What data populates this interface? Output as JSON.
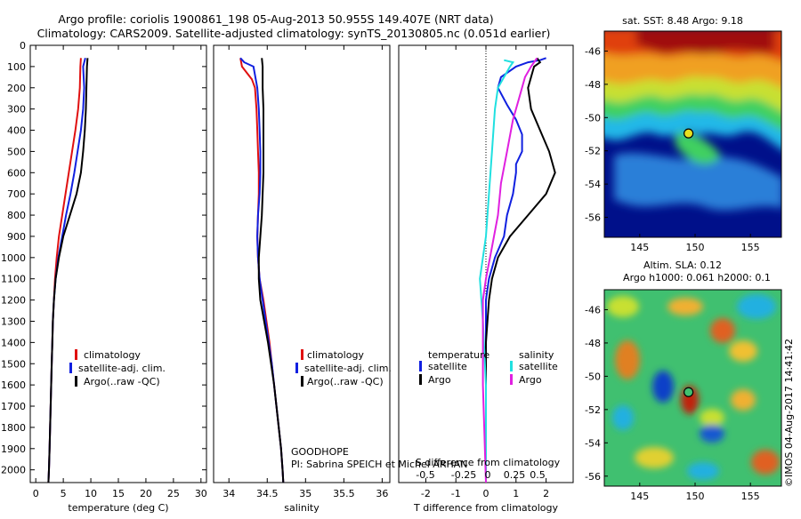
{
  "header": {
    "line1": "Argo profile: coriolis 1900861_198 05-Aug-2013 50.955S 149.407E (NRT data)",
    "line2": "Climatology: CARS2009. Satellite-adjusted climatology: synTS_20130805.nc (0.051d earlier)"
  },
  "colors": {
    "climatology": "#e01010",
    "satellite": "#1020e0",
    "argo": "#000000",
    "salinity_satellite": "#20e0e0",
    "salinity_argo": "#e020e0"
  },
  "chart_data": [
    {
      "type": "line",
      "name": "temperature-profile",
      "xlabel": "temperature (deg C)",
      "xlim": [
        -1,
        31
      ],
      "xticks": [
        0,
        5,
        10,
        15,
        20,
        25,
        30
      ],
      "ylim": [
        2060,
        0
      ],
      "yticks": [
        0,
        100,
        200,
        300,
        400,
        500,
        600,
        700,
        800,
        900,
        1000,
        1100,
        1200,
        1300,
        1400,
        1500,
        1600,
        1700,
        1800,
        1900,
        2000
      ],
      "legend": [
        "climatology",
        "satellite-adj. clim.",
        "Argo(..raw -QC)"
      ],
      "legend_position": "center",
      "series": [
        {
          "name": "climatology",
          "color": "#e01010",
          "points": [
            [
              8.2,
              60
            ],
            [
              8.1,
              100
            ],
            [
              8.0,
              200
            ],
            [
              7.7,
              300
            ],
            [
              7.2,
              400
            ],
            [
              6.6,
              500
            ],
            [
              6.0,
              600
            ],
            [
              5.4,
              700
            ],
            [
              4.8,
              800
            ],
            [
              4.2,
              900
            ],
            [
              3.8,
              1000
            ],
            [
              3.5,
              1100
            ],
            [
              3.3,
              1200
            ],
            [
              3.1,
              1300
            ],
            [
              3.0,
              1400
            ],
            [
              2.9,
              1500
            ],
            [
              2.8,
              1600
            ],
            [
              2.7,
              1700
            ],
            [
              2.6,
              1800
            ],
            [
              2.5,
              1900
            ],
            [
              2.4,
              2000
            ],
            [
              2.3,
              2060
            ]
          ]
        },
        {
          "name": "satellite-adj. clim.",
          "color": "#1020e0",
          "points": [
            [
              9.0,
              60
            ],
            [
              8.6,
              100
            ],
            [
              8.8,
              200
            ],
            [
              8.6,
              300
            ],
            [
              8.2,
              400
            ],
            [
              7.6,
              500
            ],
            [
              7.0,
              600
            ],
            [
              6.3,
              700
            ],
            [
              5.5,
              800
            ],
            [
              4.8,
              900
            ],
            [
              4.1,
              1000
            ],
            [
              3.6,
              1100
            ],
            [
              3.3,
              1200
            ],
            [
              3.1,
              1300
            ],
            [
              3.0,
              1400
            ],
            [
              2.9,
              1500
            ],
            [
              2.8,
              1600
            ],
            [
              2.7,
              1700
            ],
            [
              2.6,
              1800
            ],
            [
              2.5,
              1900
            ],
            [
              2.4,
              2000
            ],
            [
              2.3,
              2060
            ]
          ]
        },
        {
          "name": "Argo(..raw -QC)",
          "color": "#000000",
          "points": [
            [
              9.4,
              60
            ],
            [
              9.3,
              100
            ],
            [
              9.2,
              200
            ],
            [
              9.1,
              300
            ],
            [
              8.9,
              400
            ],
            [
              8.6,
              500
            ],
            [
              8.2,
              600
            ],
            [
              7.4,
              700
            ],
            [
              6.2,
              800
            ],
            [
              5.0,
              900
            ],
            [
              4.2,
              1000
            ],
            [
              3.6,
              1100
            ],
            [
              3.3,
              1200
            ],
            [
              3.1,
              1300
            ],
            [
              3.0,
              1400
            ],
            [
              2.9,
              1500
            ],
            [
              2.8,
              1600
            ],
            [
              2.7,
              1700
            ],
            [
              2.6,
              1800
            ],
            [
              2.5,
              1900
            ],
            [
              2.4,
              2000
            ],
            [
              2.3,
              2060
            ]
          ]
        }
      ]
    },
    {
      "type": "line",
      "name": "salinity-profile",
      "xlabel": "salinity",
      "xlim": [
        33.8,
        36.1
      ],
      "xticks": [
        34,
        34.5,
        35,
        35.5,
        36
      ],
      "ylim": [
        2060,
        0
      ],
      "legend": [
        "climatology",
        "satellite-adj. clim.",
        "Argo(..raw -QC)"
      ],
      "legend_position": "center",
      "annotations": [
        "GOODHOPE",
        "PI: Sabrina SPEICH et Michel ARHAN"
      ],
      "series": [
        {
          "name": "climatology",
          "color": "#e01010",
          "points": [
            [
              34.15,
              60
            ],
            [
              34.17,
              100
            ],
            [
              34.3,
              160
            ],
            [
              34.34,
              200
            ],
            [
              34.36,
              300
            ],
            [
              34.37,
              400
            ],
            [
              34.38,
              500
            ],
            [
              34.39,
              600
            ],
            [
              34.39,
              700
            ],
            [
              34.38,
              800
            ],
            [
              34.37,
              900
            ],
            [
              34.38,
              1000
            ],
            [
              34.4,
              1100
            ],
            [
              34.45,
              1200
            ],
            [
              34.49,
              1300
            ],
            [
              34.53,
              1400
            ],
            [
              34.56,
              1500
            ],
            [
              34.59,
              1600
            ],
            [
              34.62,
              1700
            ],
            [
              34.65,
              1800
            ],
            [
              34.68,
              1900
            ],
            [
              34.7,
              2000
            ],
            [
              34.71,
              2060
            ]
          ]
        },
        {
          "name": "satellite-adj. clim.",
          "color": "#1020e0",
          "points": [
            [
              34.15,
              60
            ],
            [
              34.2,
              80
            ],
            [
              34.32,
              100
            ],
            [
              34.37,
              200
            ],
            [
              34.39,
              300
            ],
            [
              34.4,
              400
            ],
            [
              34.41,
              500
            ],
            [
              34.41,
              600
            ],
            [
              34.4,
              700
            ],
            [
              34.38,
              800
            ],
            [
              34.37,
              900
            ],
            [
              34.38,
              1000
            ],
            [
              34.4,
              1100
            ],
            [
              34.44,
              1200
            ],
            [
              34.48,
              1300
            ],
            [
              34.52,
              1400
            ],
            [
              34.56,
              1500
            ],
            [
              34.59,
              1600
            ],
            [
              34.62,
              1700
            ],
            [
              34.65,
              1800
            ],
            [
              34.68,
              1900
            ],
            [
              34.7,
              2000
            ],
            [
              34.71,
              2060
            ]
          ]
        },
        {
          "name": "Argo(..raw -QC)",
          "color": "#000000",
          "points": [
            [
              34.43,
              60
            ],
            [
              34.44,
              100
            ],
            [
              34.44,
              200
            ],
            [
              34.45,
              300
            ],
            [
              34.45,
              400
            ],
            [
              34.45,
              500
            ],
            [
              34.45,
              600
            ],
            [
              34.44,
              700
            ],
            [
              34.43,
              800
            ],
            [
              34.41,
              900
            ],
            [
              34.39,
              1000
            ],
            [
              34.39,
              1100
            ],
            [
              34.41,
              1200
            ],
            [
              34.46,
              1300
            ],
            [
              34.51,
              1400
            ],
            [
              34.55,
              1500
            ],
            [
              34.59,
              1600
            ],
            [
              34.62,
              1700
            ],
            [
              34.65,
              1800
            ],
            [
              34.68,
              1900
            ],
            [
              34.7,
              2000
            ],
            [
              34.71,
              2060
            ]
          ]
        }
      ]
    },
    {
      "type": "line",
      "name": "difference-profile",
      "xlabel": "T difference from climatology",
      "xlabel_top": "S difference from climatology",
      "xlim": [
        -2.9,
        2.9
      ],
      "xticks": [
        -2,
        -1,
        0,
        1,
        2
      ],
      "secondary_xticks_labels": [
        "-0.5",
        "-0.25",
        "0",
        "0.25",
        "0.5"
      ],
      "ylim": [
        2060,
        0
      ],
      "legend": [
        "temperature",
        "satellite",
        "Argo",
        "salinity",
        "satellite",
        "Argo"
      ],
      "legend_position": "center",
      "series": [
        {
          "name": "T satellite",
          "color": "#1020e0",
          "points": [
            [
              2.0,
              60
            ],
            [
              1.8,
              70
            ],
            [
              1.4,
              80
            ],
            [
              1.0,
              100
            ],
            [
              0.5,
              150
            ],
            [
              0.4,
              200
            ],
            [
              0.7,
              280
            ],
            [
              1.0,
              350
            ],
            [
              1.2,
              420
            ],
            [
              1.2,
              500
            ],
            [
              1.0,
              560
            ],
            [
              1.0,
              600
            ],
            [
              0.9,
              700
            ],
            [
              0.7,
              800
            ],
            [
              0.6,
              900
            ],
            [
              0.3,
              1000
            ],
            [
              0.1,
              1100
            ],
            [
              0.0,
              1200
            ],
            [
              0.0,
              1400
            ],
            [
              0.0,
              2060
            ]
          ]
        },
        {
          "name": "T Argo",
          "color": "#000000",
          "points": [
            [
              1.7,
              60
            ],
            [
              1.8,
              80
            ],
            [
              1.6,
              100
            ],
            [
              1.5,
              150
            ],
            [
              1.4,
              200
            ],
            [
              1.5,
              300
            ],
            [
              1.8,
              400
            ],
            [
              2.1,
              500
            ],
            [
              2.3,
              600
            ],
            [
              2.0,
              700
            ],
            [
              1.4,
              800
            ],
            [
              0.8,
              900
            ],
            [
              0.4,
              1000
            ],
            [
              0.2,
              1100
            ],
            [
              0.1,
              1200
            ],
            [
              0.0,
              1400
            ],
            [
              0.0,
              2060
            ]
          ]
        },
        {
          "name": "S satellite",
          "color": "#20e0e0",
          "points": [
            [
              0.6,
              70
            ],
            [
              0.9,
              80
            ],
            [
              0.8,
              100
            ],
            [
              0.6,
              150
            ],
            [
              0.4,
              200
            ],
            [
              0.3,
              300
            ],
            [
              0.2,
              500
            ],
            [
              0.1,
              700
            ],
            [
              0.0,
              900
            ],
            [
              -0.2,
              1100
            ],
            [
              -0.1,
              1300
            ],
            [
              0.0,
              1600
            ],
            [
              0.0,
              2060
            ]
          ]
        },
        {
          "name": "S Argo",
          "color": "#e020e0",
          "points": [
            [
              1.7,
              60
            ],
            [
              1.5,
              100
            ],
            [
              1.3,
              150
            ],
            [
              1.1,
              250
            ],
            [
              0.9,
              350
            ],
            [
              0.7,
              500
            ],
            [
              0.5,
              650
            ],
            [
              0.4,
              800
            ],
            [
              0.2,
              950
            ],
            [
              0.0,
              1100
            ],
            [
              -0.1,
              1200
            ],
            [
              -0.1,
              1600
            ],
            [
              0.0,
              2060
            ]
          ]
        }
      ]
    },
    {
      "type": "heatmap",
      "name": "sst-map",
      "title": "sat. SST: 8.48  Argo: 9.18",
      "xlim": [
        141.8,
        157.8
      ],
      "xticks": [
        145,
        150,
        155
      ],
      "ylim": [
        -57.2,
        -44.8
      ],
      "yticks": [
        -46,
        -48,
        -50,
        -52,
        -54,
        -56
      ],
      "marker": [
        149.407,
        -50.955
      ]
    },
    {
      "type": "heatmap",
      "name": "sla-map",
      "title": "Altim. SLA: 0.12",
      "subtitle": "Argo h1000: 0.061 h2000: 0.1",
      "xlim": [
        141.8,
        157.8
      ],
      "xticks": [
        145,
        150,
        155
      ],
      "ylim": [
        -56.6,
        -44.8
      ],
      "yticks": [
        -46,
        -48,
        -50,
        -52,
        -54,
        -56
      ],
      "marker": [
        149.407,
        -50.955
      ]
    }
  ],
  "footer": {
    "credit": "©IMOS 04-Aug-2017 14:41:42"
  }
}
